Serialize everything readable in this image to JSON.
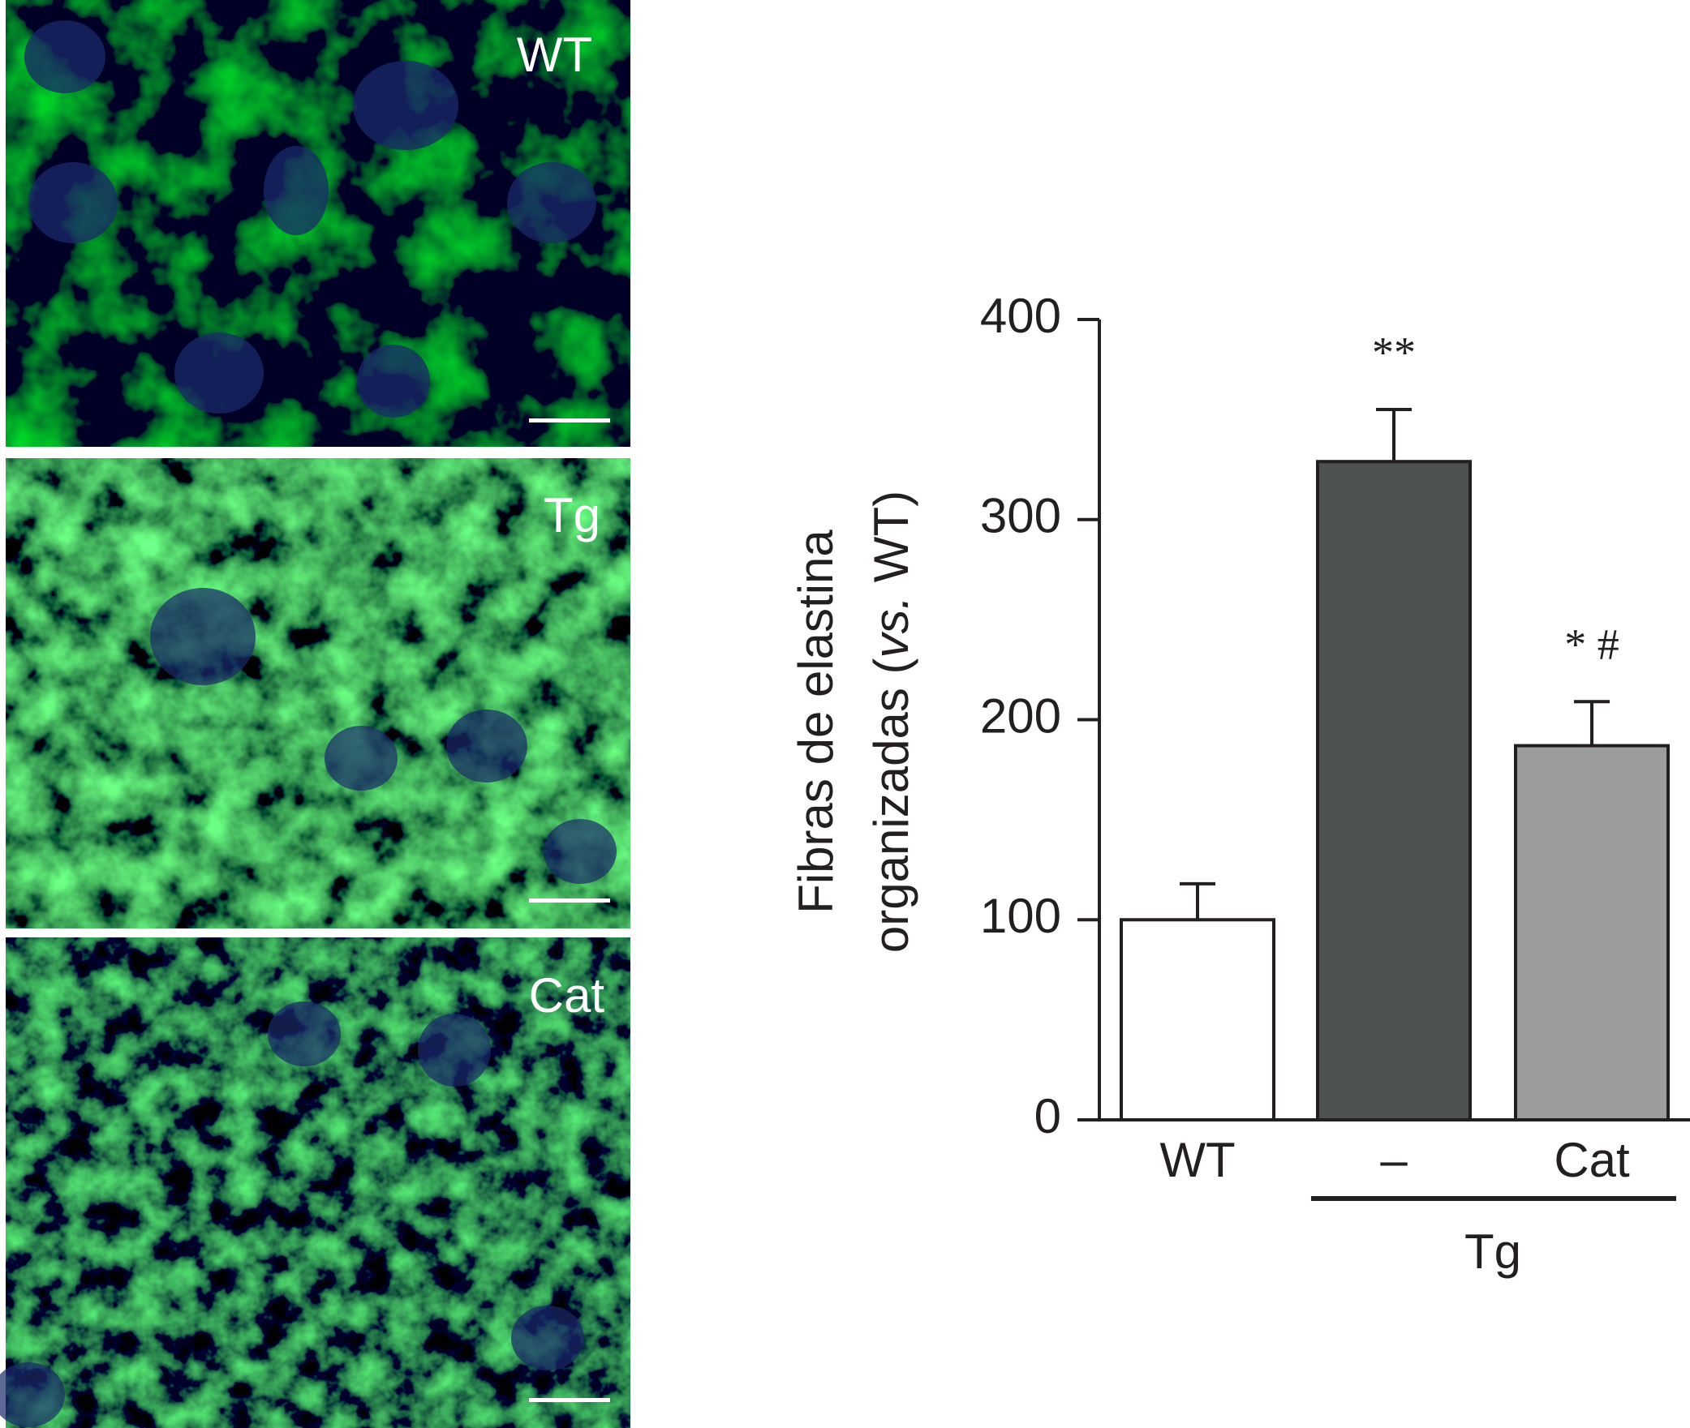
{
  "panels": [
    {
      "label": "WT"
    },
    {
      "label": "Tg"
    },
    {
      "label": "Cat"
    }
  ],
  "chart_data": {
    "type": "bar",
    "y_label": [
      "Fibras de elastina",
      "organizadas (",
      "vs.",
      " WT)"
    ],
    "categories": [
      "WT",
      "–",
      "Cat"
    ],
    "values": [
      100,
      329,
      187
    ],
    "errors": [
      18,
      26,
      22
    ],
    "colors": [
      "#ffffff",
      "#4d5150",
      "#9a9d9c"
    ],
    "annotations": [
      null,
      "**",
      "* #"
    ],
    "group": {
      "label": "Tg",
      "span": [
        1,
        2
      ]
    },
    "ylim": [
      0,
      400
    ],
    "yticks": [
      0,
      100,
      200,
      300,
      400
    ]
  }
}
